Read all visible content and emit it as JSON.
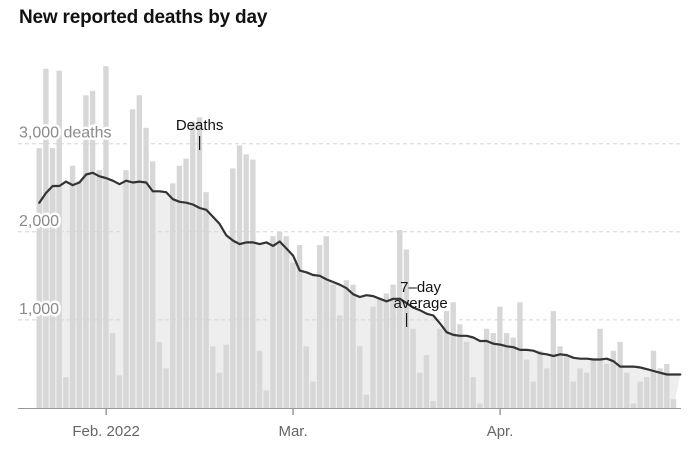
{
  "title": "New reported deaths by day",
  "chart_data": {
    "type": "bar",
    "title": "New reported deaths by day",
    "y_tick_labels": [
      "1,000",
      "2,000",
      "3,000 deaths"
    ],
    "y_ticks": [
      1000,
      2000,
      3000
    ],
    "ylim": [
      0,
      3950
    ],
    "x_tick_labels": [
      "Feb. 2022",
      "Mar.",
      "Apr."
    ],
    "x_tick_days": [
      11,
      39,
      70
    ],
    "grid": true,
    "colors": {
      "bars": "#d7d7d7",
      "average_line": "#333333",
      "average_area": "#eeeeee",
      "grid": "#d6d6d6"
    },
    "series": [
      {
        "name": "Deaths",
        "values": [
          2950,
          3850,
          2950,
          3830,
          350,
          2750,
          2580,
          3550,
          3600,
          2700,
          3880,
          850,
          370,
          2700,
          3390,
          3550,
          3180,
          2800,
          750,
          450,
          2550,
          2750,
          2830,
          3250,
          3300,
          2450,
          700,
          400,
          720,
          2720,
          2980,
          2880,
          2820,
          650,
          200,
          1950,
          2000,
          1950,
          1650,
          1850,
          700,
          300,
          1850,
          1950,
          1400,
          1050,
          1450,
          1400,
          700,
          150,
          1150,
          1250,
          1300,
          1400,
          2020,
          1800,
          900,
          400,
          600,
          80,
          900,
          1100,
          1200,
          950,
          750,
          350,
          50,
          900,
          850,
          1150,
          850,
          800,
          1200,
          550,
          300,
          650,
          450,
          1100,
          700,
          600,
          300,
          450,
          400,
          550,
          900,
          500,
          650,
          750,
          400,
          50,
          300,
          350,
          650,
          450,
          500,
          100
        ]
      },
      {
        "name": "7-day average",
        "values": [
          2330,
          2440,
          2520,
          2520,
          2570,
          2530,
          2560,
          2650,
          2670,
          2630,
          2610,
          2580,
          2540,
          2580,
          2560,
          2570,
          2560,
          2460,
          2460,
          2450,
          2370,
          2340,
          2330,
          2310,
          2270,
          2250,
          2170,
          2090,
          1960,
          1900,
          1860,
          1880,
          1880,
          1860,
          1880,
          1840,
          1890,
          1810,
          1730,
          1560,
          1540,
          1510,
          1500,
          1460,
          1430,
          1400,
          1360,
          1290,
          1260,
          1280,
          1270,
          1240,
          1210,
          1240,
          1240,
          1190,
          1140,
          1110,
          1070,
          1050,
          960,
          860,
          830,
          820,
          820,
          800,
          760,
          760,
          730,
          720,
          700,
          690,
          660,
          660,
          650,
          620,
          610,
          590,
          610,
          600,
          570,
          560,
          560,
          550,
          550,
          560,
          530,
          470,
          470,
          470,
          460,
          440,
          420,
          400,
          380,
          380,
          380
        ]
      }
    ],
    "annotations": [
      {
        "text": "Deaths",
        "day": 24
      },
      {
        "text_lines": [
          "7–day",
          "average"
        ],
        "day": 55
      }
    ]
  }
}
